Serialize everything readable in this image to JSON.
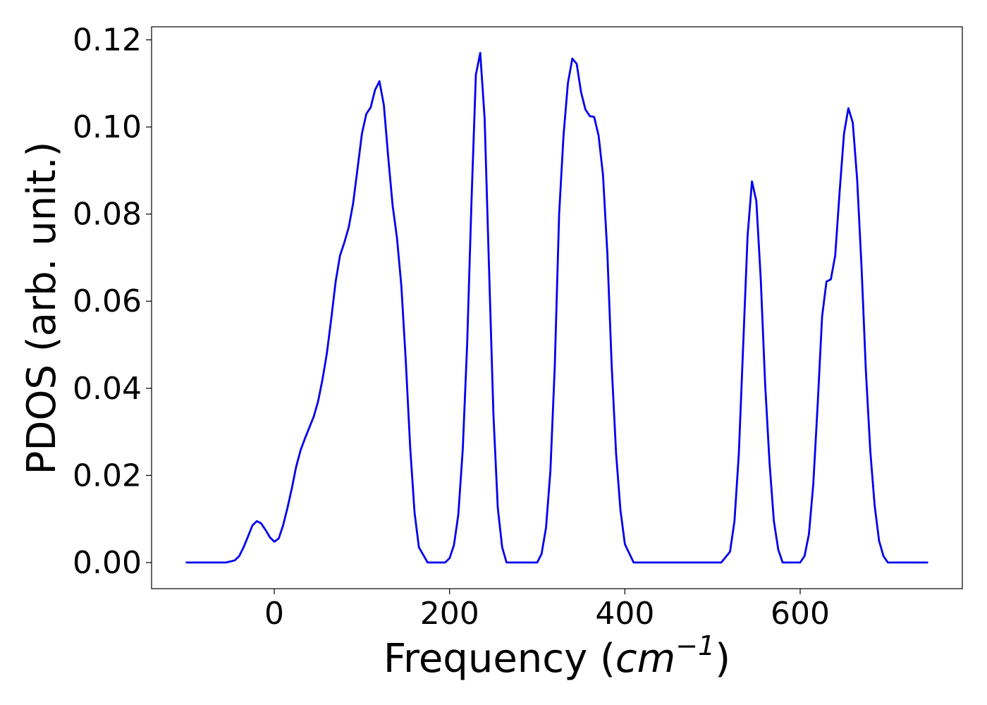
{
  "chart_data": {
    "type": "line",
    "title": "",
    "xlabel": {
      "text": "Frequency (",
      "unit": "cm",
      "unit_superscript": "−1",
      "close": ")"
    },
    "ylabel": "PDOS (arb. unit.)",
    "xlim": [
      -140,
      785
    ],
    "ylim": [
      -0.006,
      0.123
    ],
    "xticks": [
      0,
      200,
      400,
      600
    ],
    "xtick_labels": [
      "0",
      "200",
      "400",
      "600"
    ],
    "yticks": [
      0.0,
      0.02,
      0.04,
      0.06,
      0.08,
      0.1,
      0.12
    ],
    "ytick_labels": [
      "0.00",
      "0.02",
      "0.04",
      "0.06",
      "0.08",
      "0.10",
      "0.12"
    ],
    "grid": false,
    "legend": "none",
    "series": [
      {
        "color": "#0000ee",
        "x": [
          -100,
          -55,
          -45,
          -40,
          -35,
          -30,
          -25,
          -20,
          -15,
          -10,
          -5,
          0,
          5,
          10,
          15,
          20,
          25,
          30,
          35,
          40,
          45,
          50,
          55,
          60,
          65,
          70,
          75,
          80,
          85,
          90,
          95,
          100,
          105,
          110,
          115,
          120,
          125,
          130,
          135,
          140,
          145,
          150,
          155,
          160,
          165,
          175,
          195,
          200,
          205,
          210,
          215,
          220,
          225,
          230,
          235,
          240,
          245,
          250,
          255,
          260,
          265,
          275,
          300,
          305,
          310,
          315,
          320,
          325,
          330,
          335,
          340,
          345,
          350,
          355,
          360,
          365,
          370,
          375,
          380,
          385,
          390,
          395,
          400,
          410,
          510,
          520,
          525,
          530,
          535,
          540,
          545,
          550,
          555,
          560,
          565,
          570,
          575,
          580,
          600,
          605,
          610,
          615,
          620,
          625,
          630,
          635,
          640,
          645,
          650,
          655,
          660,
          665,
          670,
          675,
          680,
          685,
          690,
          695,
          700,
          745
        ],
        "y": [
          0.0,
          0.0,
          0.0005,
          0.0015,
          0.0035,
          0.006,
          0.0085,
          0.0095,
          0.009,
          0.0075,
          0.0058,
          0.0048,
          0.0055,
          0.0085,
          0.0125,
          0.017,
          0.022,
          0.0258,
          0.0285,
          0.031,
          0.0335,
          0.037,
          0.042,
          0.048,
          0.056,
          0.0645,
          0.0705,
          0.0735,
          0.077,
          0.0825,
          0.0905,
          0.0985,
          0.103,
          0.1045,
          0.1085,
          0.1105,
          0.105,
          0.093,
          0.082,
          0.0745,
          0.0635,
          0.0465,
          0.0265,
          0.0115,
          0.0035,
          0.0,
          0.0,
          0.001,
          0.004,
          0.011,
          0.026,
          0.05,
          0.083,
          0.112,
          0.117,
          0.102,
          0.068,
          0.034,
          0.0125,
          0.0035,
          0.0,
          0.0,
          0.0,
          0.002,
          0.008,
          0.021,
          0.045,
          0.08,
          0.098,
          0.11,
          0.1157,
          0.1145,
          0.108,
          0.104,
          0.1025,
          0.1023,
          0.098,
          0.089,
          0.071,
          0.045,
          0.025,
          0.012,
          0.0042,
          0.0,
          0.0,
          0.0025,
          0.0095,
          0.025,
          0.05,
          0.075,
          0.0875,
          0.083,
          0.065,
          0.041,
          0.023,
          0.0095,
          0.003,
          0.0,
          0.0,
          0.0015,
          0.0065,
          0.018,
          0.0365,
          0.0565,
          0.0645,
          0.065,
          0.0705,
          0.085,
          0.0985,
          0.1043,
          0.101,
          0.088,
          0.068,
          0.044,
          0.0255,
          0.013,
          0.005,
          0.0015,
          0.0,
          0.0
        ]
      }
    ]
  }
}
